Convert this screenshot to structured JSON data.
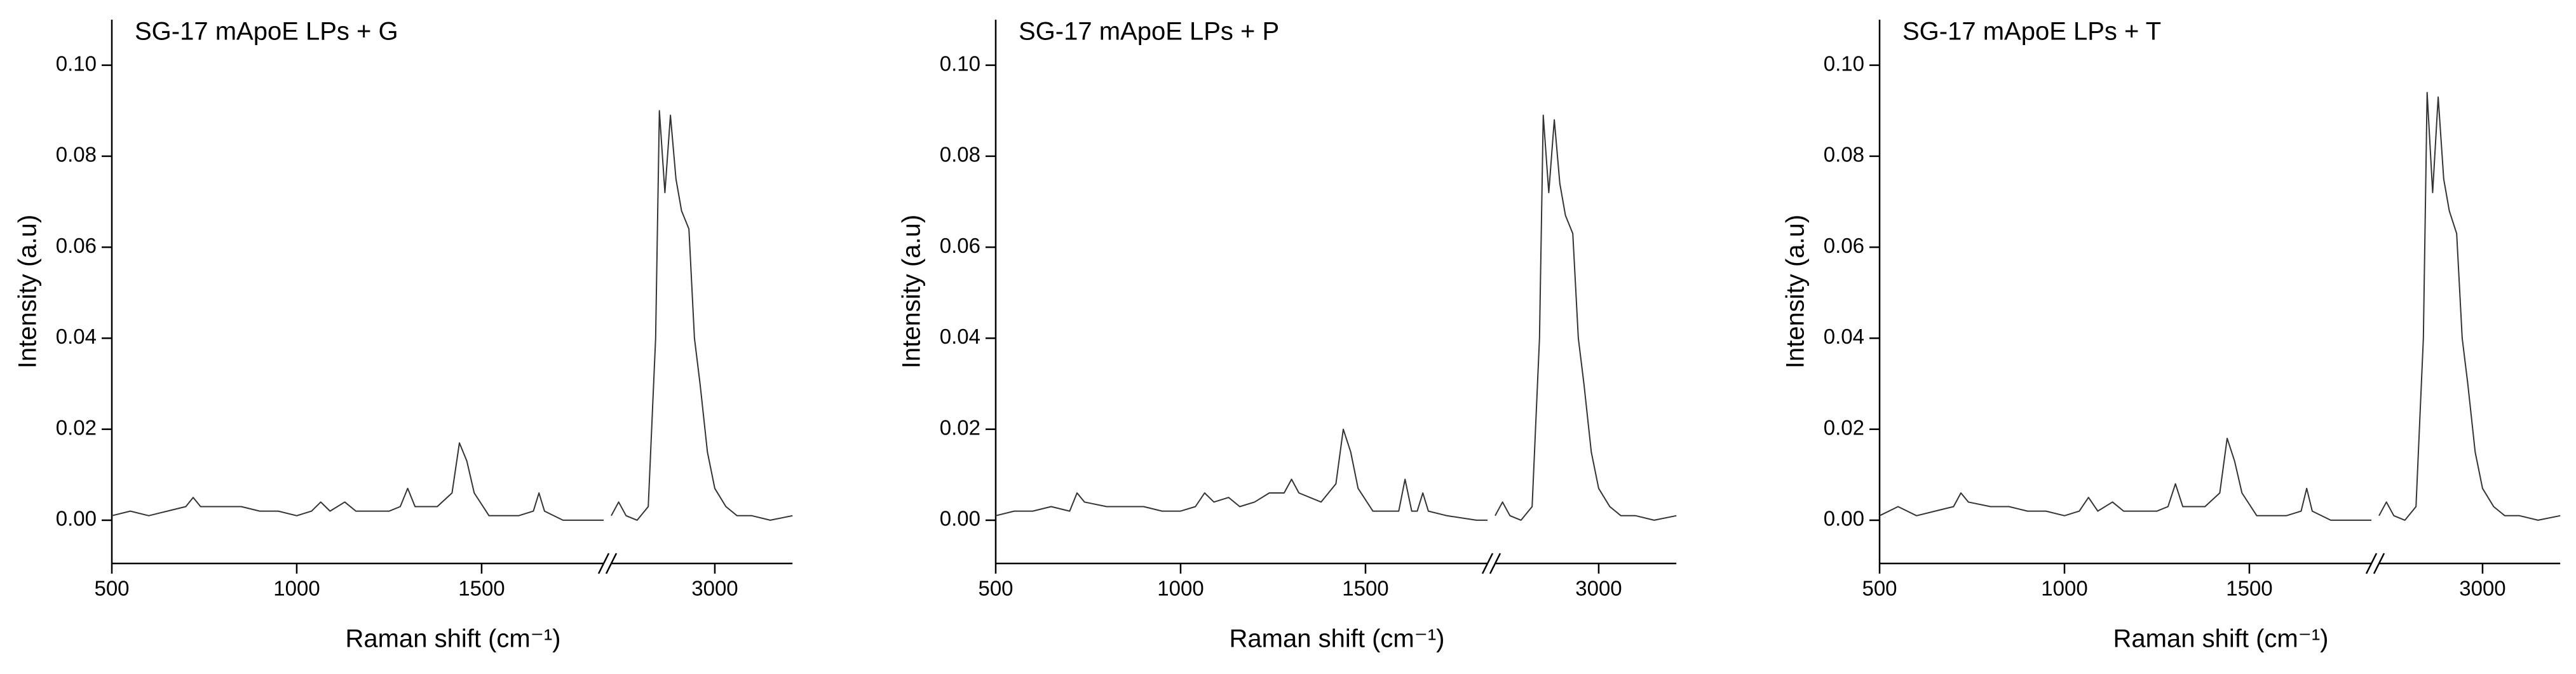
{
  "chart_data": [
    {
      "type": "line",
      "title": "SG-17 mApoE LPs + G",
      "xlabel": "Raman shift (cm⁻¹)",
      "ylabel": "Intensity (a.u)",
      "color": "#333333",
      "xlim": [
        500,
        3210
      ],
      "xbreak": [
        1830,
        2720
      ],
      "xticks": [
        500,
        1000,
        1500,
        3000
      ],
      "ylim": [
        -0.0095,
        0.11
      ],
      "yticks": [
        {
          "value": 0,
          "label": "0.00"
        },
        {
          "value": 0.02,
          "label": "0.02"
        },
        {
          "value": 0.04,
          "label": "0.04"
        },
        {
          "value": 0.06,
          "label": "0.06"
        },
        {
          "value": 0.08,
          "label": "0.08"
        },
        {
          "value": 0.1,
          "label": "0.10"
        }
      ],
      "x": [
        500,
        550,
        600,
        650,
        700,
        720,
        740,
        800,
        850,
        900,
        950,
        1000,
        1040,
        1065,
        1090,
        1130,
        1160,
        1200,
        1250,
        1280,
        1300,
        1320,
        1380,
        1420,
        1440,
        1460,
        1480,
        1520,
        1600,
        1640,
        1655,
        1670,
        1720,
        1800,
        1830,
        2720,
        2740,
        2760,
        2790,
        2820,
        2840,
        2850,
        2865,
        2880,
        2895,
        2910,
        2930,
        2945,
        2960,
        2980,
        3000,
        3030,
        3060,
        3100,
        3150,
        3210
      ],
      "values": [
        0.001,
        0.002,
        0.001,
        0.002,
        0.003,
        0.005,
        0.003,
        0.003,
        0.003,
        0.002,
        0.002,
        0.001,
        0.002,
        0.004,
        0.002,
        0.004,
        0.002,
        0.002,
        0.002,
        0.003,
        0.007,
        0.003,
        0.003,
        0.006,
        0.017,
        0.013,
        0.006,
        0.001,
        0.001,
        0.002,
        0.006,
        0.002,
        0.0,
        0.0,
        0.0,
        0.001,
        0.004,
        0.001,
        0.0,
        0.003,
        0.04,
        0.09,
        0.072,
        0.089,
        0.075,
        0.068,
        0.064,
        0.04,
        0.03,
        0.015,
        0.007,
        0.003,
        0.001,
        0.001,
        0.0,
        0.001
      ]
    },
    {
      "type": "line",
      "title": "SG-17 mApoE LPs + P",
      "xlabel": "Raman shift (cm⁻¹)",
      "ylabel": "Intensity (a.u)",
      "color": "#333333",
      "xlim": [
        500,
        3210
      ],
      "xbreak": [
        1830,
        2720
      ],
      "xticks": [
        500,
        1000,
        1500,
        3000
      ],
      "ylim": [
        -0.0095,
        0.11
      ],
      "yticks": [
        {
          "value": 0,
          "label": "0.00"
        },
        {
          "value": 0.02,
          "label": "0.02"
        },
        {
          "value": 0.04,
          "label": "0.04"
        },
        {
          "value": 0.06,
          "label": "0.06"
        },
        {
          "value": 0.08,
          "label": "0.08"
        },
        {
          "value": 0.1,
          "label": "0.10"
        }
      ],
      "x": [
        500,
        550,
        600,
        650,
        700,
        720,
        740,
        800,
        850,
        900,
        950,
        1000,
        1040,
        1065,
        1090,
        1130,
        1160,
        1200,
        1240,
        1280,
        1300,
        1320,
        1380,
        1420,
        1440,
        1460,
        1480,
        1520,
        1590,
        1607,
        1625,
        1640,
        1655,
        1670,
        1720,
        1800,
        1830,
        2720,
        2740,
        2760,
        2790,
        2820,
        2840,
        2850,
        2865,
        2880,
        2895,
        2910,
        2930,
        2945,
        2960,
        2980,
        3000,
        3030,
        3060,
        3100,
        3150,
        3210
      ],
      "values": [
        0.001,
        0.002,
        0.002,
        0.003,
        0.002,
        0.006,
        0.004,
        0.003,
        0.003,
        0.003,
        0.002,
        0.002,
        0.003,
        0.006,
        0.004,
        0.005,
        0.003,
        0.004,
        0.006,
        0.006,
        0.009,
        0.006,
        0.004,
        0.008,
        0.02,
        0.015,
        0.007,
        0.002,
        0.002,
        0.009,
        0.002,
        0.002,
        0.006,
        0.002,
        0.001,
        0.0,
        0.0,
        0.001,
        0.004,
        0.001,
        0.0,
        0.003,
        0.04,
        0.089,
        0.072,
        0.088,
        0.074,
        0.067,
        0.063,
        0.04,
        0.03,
        0.015,
        0.007,
        0.003,
        0.001,
        0.001,
        0.0,
        0.001
      ]
    },
    {
      "type": "line",
      "title": "SG-17 mApoE LPs + T",
      "xlabel": "Raman shift (cm⁻¹)",
      "ylabel": "Intensity (a.u)",
      "color": "#333333",
      "xlim": [
        500,
        3210
      ],
      "xbreak": [
        1830,
        2720
      ],
      "xticks": [
        500,
        1000,
        1500,
        3000
      ],
      "ylim": [
        -0.0095,
        0.11
      ],
      "yticks": [
        {
          "value": 0,
          "label": "0.00"
        },
        {
          "value": 0.02,
          "label": "0.02"
        },
        {
          "value": 0.04,
          "label": "0.04"
        },
        {
          "value": 0.06,
          "label": "0.06"
        },
        {
          "value": 0.08,
          "label": "0.08"
        },
        {
          "value": 0.1,
          "label": "0.10"
        }
      ],
      "x": [
        500,
        550,
        600,
        650,
        700,
        720,
        740,
        800,
        850,
        900,
        950,
        1000,
        1040,
        1065,
        1090,
        1130,
        1160,
        1200,
        1250,
        1280,
        1300,
        1320,
        1380,
        1420,
        1440,
        1460,
        1480,
        1520,
        1600,
        1640,
        1655,
        1670,
        1720,
        1800,
        1830,
        2720,
        2740,
        2760,
        2790,
        2820,
        2840,
        2850,
        2865,
        2880,
        2895,
        2910,
        2930,
        2945,
        2960,
        2980,
        3000,
        3030,
        3060,
        3100,
        3150,
        3210
      ],
      "values": [
        0.001,
        0.003,
        0.001,
        0.002,
        0.003,
        0.006,
        0.004,
        0.003,
        0.003,
        0.002,
        0.002,
        0.001,
        0.002,
        0.005,
        0.002,
        0.004,
        0.002,
        0.002,
        0.002,
        0.003,
        0.008,
        0.003,
        0.003,
        0.006,
        0.018,
        0.013,
        0.006,
        0.001,
        0.001,
        0.002,
        0.007,
        0.002,
        0.0,
        0.0,
        0.0,
        0.001,
        0.004,
        0.001,
        0.0,
        0.003,
        0.04,
        0.094,
        0.072,
        0.093,
        0.075,
        0.068,
        0.063,
        0.04,
        0.03,
        0.015,
        0.007,
        0.003,
        0.001,
        0.001,
        0.0,
        0.001
      ]
    }
  ]
}
